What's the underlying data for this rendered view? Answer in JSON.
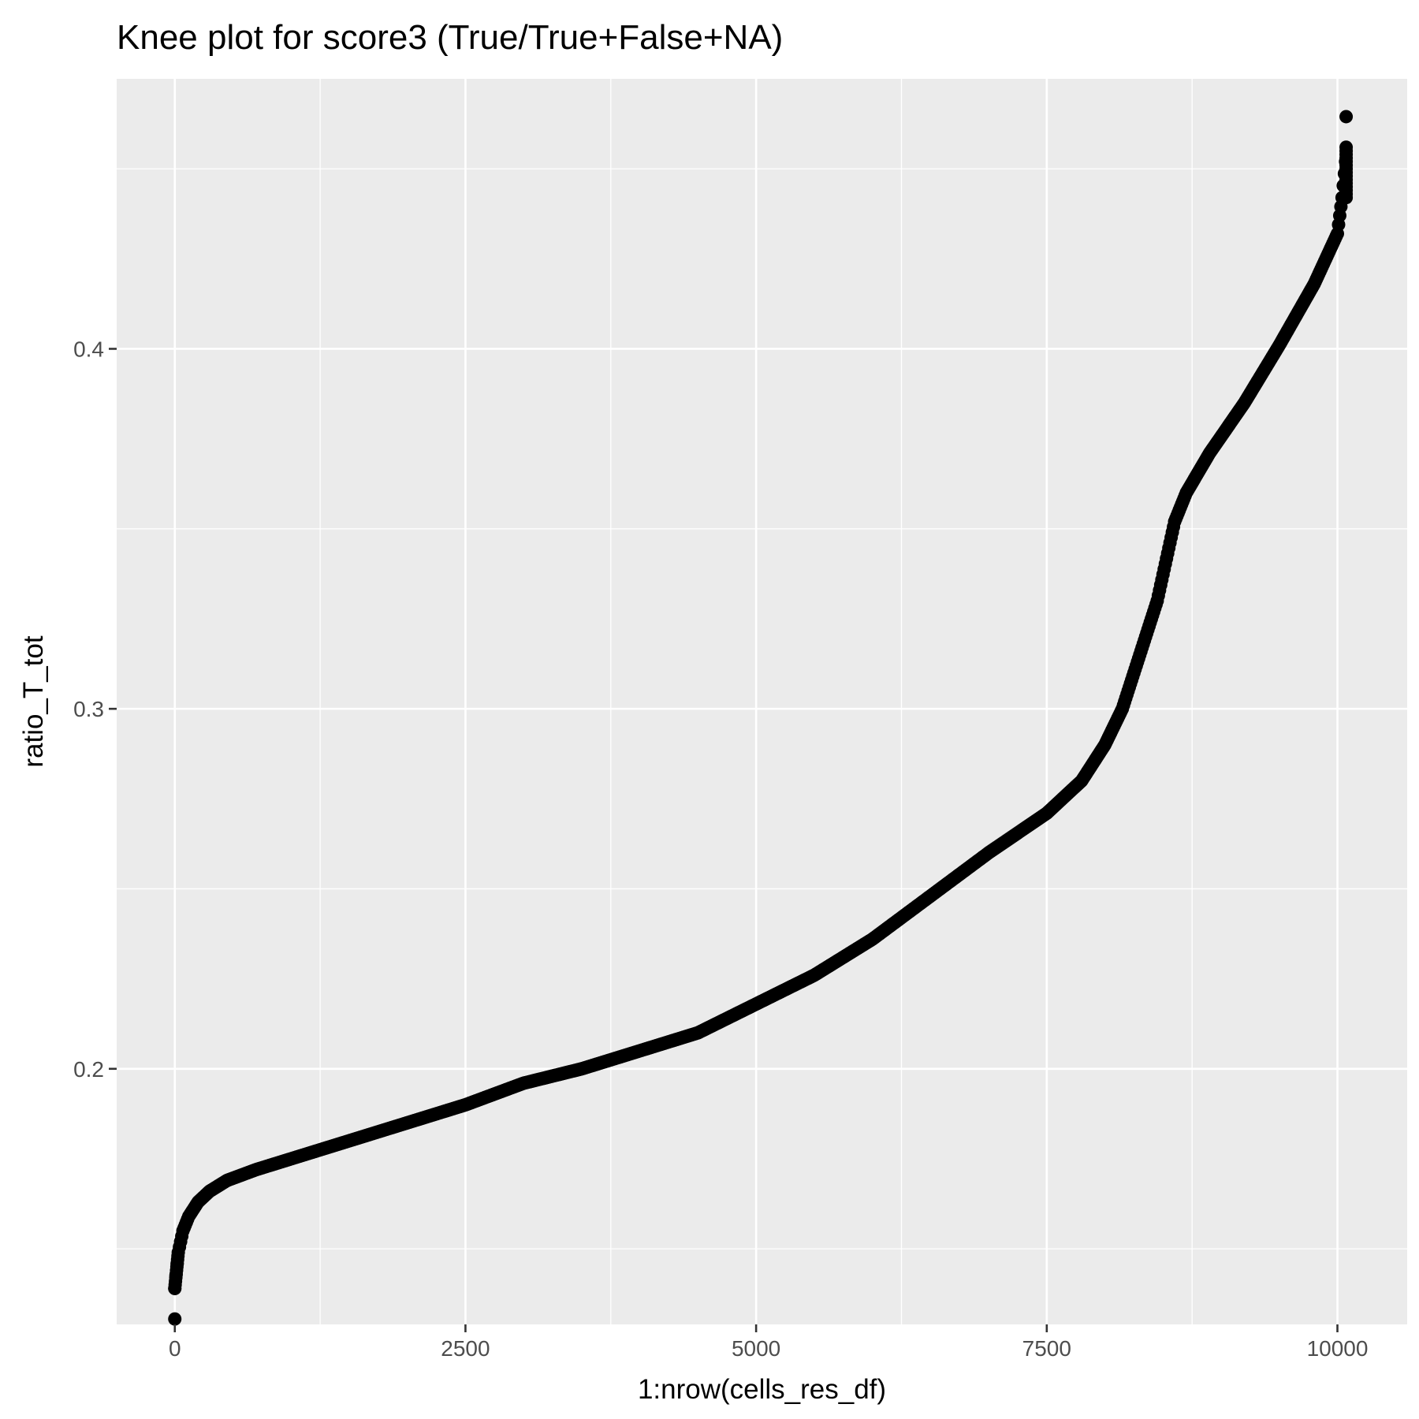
{
  "chart_data": {
    "type": "scatter",
    "title": "Knee plot for score3 (True/True+False+NA)",
    "xlabel": "1:nrow(cells_res_df)",
    "ylabel": "ratio_T_tot",
    "xlim": [
      -500,
      10600
    ],
    "ylim": [
      0.129,
      0.475
    ],
    "x_ticks": [
      0,
      2500,
      5000,
      7500,
      10000
    ],
    "x_tick_labels": [
      "0",
      "2500",
      "5000",
      "7500",
      "10000"
    ],
    "y_ticks": [
      0.2,
      0.3,
      0.4
    ],
    "y_tick_labels": [
      "0.2",
      "0.3",
      "0.4"
    ],
    "grid": true,
    "point_color": "#000000",
    "panel_color": "#ebebeb",
    "grid_color": "#ffffff",
    "n_points": 10075,
    "curve": {
      "x": [
        0,
        5,
        30,
        70,
        120,
        200,
        300,
        450,
        700,
        1000,
        1500,
        2000,
        2500,
        3000,
        3500,
        4000,
        4500,
        5000,
        5500,
        6000,
        6500,
        7000,
        7500,
        7800,
        8000,
        8150,
        8300,
        8450,
        8600,
        8700,
        8900,
        9200,
        9500,
        9800,
        10000,
        10040,
        10070,
        10075
      ],
      "y": [
        0.139,
        0.141,
        0.149,
        0.155,
        0.159,
        0.163,
        0.166,
        0.169,
        0.172,
        0.175,
        0.18,
        0.185,
        0.19,
        0.196,
        0.2,
        0.205,
        0.21,
        0.218,
        0.226,
        0.236,
        0.248,
        0.26,
        0.271,
        0.28,
        0.29,
        0.3,
        0.315,
        0.33,
        0.352,
        0.36,
        0.371,
        0.385,
        0.401,
        0.418,
        0.432,
        0.442,
        0.452,
        0.456
      ]
    },
    "extremes": [
      {
        "x": 0,
        "y": 0.1305
      },
      {
        "x": 10075,
        "y": 0.4645
      }
    ]
  }
}
